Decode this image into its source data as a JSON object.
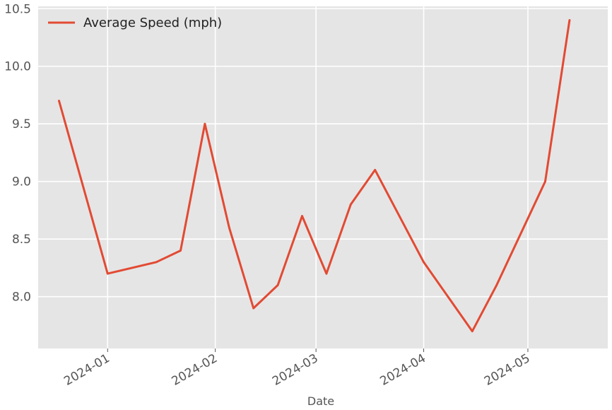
{
  "chart_data": {
    "type": "line",
    "title": "",
    "xlabel": "Date",
    "ylabel": "",
    "grid": true,
    "legend_position": "top-left",
    "background_color": "#e5e5e5",
    "grid_color": "#ffffff",
    "xlim": [
      "2023-12-12",
      "2024-05-24"
    ],
    "ylim": [
      7.55,
      10.52
    ],
    "x_ticks": [
      {
        "date": "2024-01-01",
        "label": "2024-01"
      },
      {
        "date": "2024-02-01",
        "label": "2024-02"
      },
      {
        "date": "2024-03-01",
        "label": "2024-03"
      },
      {
        "date": "2024-04-01",
        "label": "2024-04"
      },
      {
        "date": "2024-05-01",
        "label": "2024-05"
      }
    ],
    "y_ticks": [
      {
        "value": 8.0,
        "label": "8.0"
      },
      {
        "value": 8.5,
        "label": "8.5"
      },
      {
        "value": 9.0,
        "label": "9.0"
      },
      {
        "value": 9.5,
        "label": "9.5"
      },
      {
        "value": 10.0,
        "label": "10.0"
      },
      {
        "value": 10.5,
        "label": "10.5"
      }
    ],
    "series": [
      {
        "name": "Average Speed (mph)",
        "color": "#e24a33",
        "x": [
          "2023-12-18",
          "2024-01-01",
          "2024-01-15",
          "2024-01-22",
          "2024-01-29",
          "2024-02-05",
          "2024-02-12",
          "2024-02-19",
          "2024-02-26",
          "2024-03-04",
          "2024-03-11",
          "2024-03-18",
          "2024-04-01",
          "2024-04-15",
          "2024-04-22",
          "2024-05-06",
          "2024-05-13"
        ],
        "values": [
          9.7,
          8.2,
          8.3,
          8.4,
          9.5,
          8.6,
          7.9,
          8.1,
          8.7,
          8.2,
          8.8,
          9.1,
          8.3,
          7.7,
          8.1,
          9.0,
          10.4
        ]
      }
    ]
  }
}
